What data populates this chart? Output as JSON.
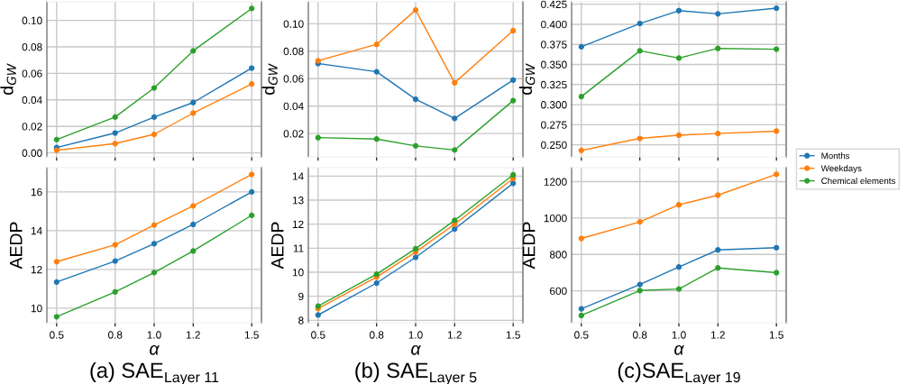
{
  "chart_data": [
    {
      "type": "line",
      "ylabel": "d$_{GW}$",
      "x": [
        0.5,
        0.8,
        1.0,
        1.2,
        1.5
      ],
      "xlim": [
        0.45,
        1.55
      ],
      "xticks": [
        {
          "value": 0.5,
          "label": null
        },
        {
          "value": 0.8,
          "label": null
        },
        {
          "value": 1.0,
          "label": null
        },
        {
          "value": 1.2,
          "label": null
        },
        {
          "value": 1.5,
          "label": null
        }
      ],
      "ylim": [
        -0.003,
        0.114
      ],
      "yticks": [
        {
          "value": 0,
          "label": "0.00"
        },
        {
          "value": 0.02,
          "label": "0.02"
        },
        {
          "value": 0.04,
          "label": "0.04"
        },
        {
          "value": 0.06,
          "label": "0.06"
        },
        {
          "value": 0.08,
          "label": "0.08"
        },
        {
          "value": 0.1,
          "label": "0.10"
        }
      ],
      "tick_labels": "y",
      "grid": true,
      "marker": "circle",
      "line_style": "solid",
      "series": [
        {
          "color": "#1f77b4",
          "values": [
            0.004,
            0.015,
            0.027,
            0.038,
            0.064
          ]
        },
        {
          "color": "#ff7f0e",
          "values": [
            0.002,
            0.007,
            0.014,
            0.03,
            0.052
          ]
        },
        {
          "color": "#2ca02c",
          "values": [
            0.01,
            0.027,
            0.049,
            0.077,
            0.109
          ]
        }
      ]
    },
    {
      "type": "line",
      "ylabel": "d$_{GW}$",
      "x": [
        0.5,
        0.8,
        1.0,
        1.2,
        1.5
      ],
      "xlim": [
        0.45,
        1.55
      ],
      "xticks": [
        {
          "value": 0.5,
          "label": null
        },
        {
          "value": 0.8,
          "label": null
        },
        {
          "value": 1.0,
          "label": null
        },
        {
          "value": 1.2,
          "label": null
        },
        {
          "value": 1.5,
          "label": null
        }
      ],
      "ylim": [
        0.003,
        0.116
      ],
      "yticks": [
        {
          "value": 0.02,
          "label": "0.02"
        },
        {
          "value": 0.04,
          "label": "0.04"
        },
        {
          "value": 0.06,
          "label": "0.06"
        },
        {
          "value": 0.08,
          "label": "0.08"
        },
        {
          "value": 0.1,
          "label": "0.10"
        }
      ],
      "tick_labels": "y",
      "grid": true,
      "marker": "circle",
      "line_style": "solid",
      "series": [
        {
          "color": "#1f77b4",
          "values": [
            0.071,
            0.065,
            0.045,
            0.031,
            0.059
          ]
        },
        {
          "color": "#ff7f0e",
          "values": [
            0.073,
            0.085,
            0.11,
            0.057,
            0.095
          ]
        },
        {
          "color": "#2ca02c",
          "values": [
            0.017,
            0.016,
            0.011,
            0.008,
            0.044
          ]
        }
      ]
    },
    {
      "type": "line",
      "ylabel": "d$_{GW}$",
      "x": [
        0.5,
        0.8,
        1.0,
        1.2,
        1.5
      ],
      "xlim": [
        0.45,
        1.55
      ],
      "xticks": [
        {
          "value": 0.5,
          "label": null
        },
        {
          "value": 0.8,
          "label": null
        },
        {
          "value": 1.0,
          "label": null
        },
        {
          "value": 1.2,
          "label": null
        },
        {
          "value": 1.5,
          "label": null
        }
      ],
      "ylim": [
        0.235,
        0.428
      ],
      "yticks": [
        {
          "value": 0.25,
          "label": "0.250"
        },
        {
          "value": 0.275,
          "label": "0.275"
        },
        {
          "value": 0.3,
          "label": "0.300"
        },
        {
          "value": 0.325,
          "label": "0.325"
        },
        {
          "value": 0.35,
          "label": "0.350"
        },
        {
          "value": 0.375,
          "label": "0.375"
        },
        {
          "value": 0.4,
          "label": "0.400"
        },
        {
          "value": 0.425,
          "label": "0.425"
        }
      ],
      "tick_labels": "y",
      "grid": true,
      "marker": "circle",
      "line_style": "solid",
      "legend": "right",
      "series": [
        {
          "name": "Months",
          "color": "#1f77b4",
          "values": [
            0.372,
            0.401,
            0.417,
            0.413,
            0.42
          ]
        },
        {
          "name": "Weekdays",
          "color": "#ff7f0e",
          "values": [
            0.243,
            0.258,
            0.262,
            0.264,
            0.267
          ]
        },
        {
          "name": "Chemical elements",
          "color": "#2ca02c",
          "values": [
            0.31,
            0.367,
            0.358,
            0.37,
            0.369
          ]
        }
      ]
    },
    {
      "type": "line",
      "ylabel": "AEDP",
      "xlabel": "α",
      "annotations": [
        "(a) SAE$_{Layer 11}$"
      ],
      "x": [
        0.5,
        0.8,
        1.0,
        1.2,
        1.5
      ],
      "xlim": [
        0.45,
        1.55
      ],
      "xticks": [
        {
          "value": 0.5,
          "label": "0.5"
        },
        {
          "value": 0.8,
          "label": "0.8"
        },
        {
          "value": 1.0,
          "label": "1.0"
        },
        {
          "value": 1.2,
          "label": "1.2"
        },
        {
          "value": 1.5,
          "label": "1.5"
        }
      ],
      "ylim": [
        9.25,
        17.25
      ],
      "yticks": [
        10,
        12,
        14,
        16
      ],
      "grid": true,
      "marker": "circle",
      "line_style": "solid",
      "series": [
        {
          "color": "#1f77b4",
          "values": [
            11.35,
            12.43,
            13.33,
            14.32,
            16.0
          ]
        },
        {
          "color": "#ff7f0e",
          "values": [
            12.4,
            13.27,
            14.29,
            15.28,
            16.9
          ]
        },
        {
          "color": "#2ca02c",
          "values": [
            9.56,
            10.84,
            11.84,
            12.95,
            14.79
          ]
        }
      ]
    },
    {
      "type": "line",
      "ylabel": "AEDP",
      "xlabel": "α",
      "annotations": [
        "(b) SAE$_{Layer 5}$"
      ],
      "x": [
        0.5,
        0.8,
        1.0,
        1.2,
        1.5
      ],
      "xlim": [
        0.45,
        1.55
      ],
      "xticks": [
        {
          "value": 0.5,
          "label": "0.5"
        },
        {
          "value": 0.8,
          "label": "0.8"
        },
        {
          "value": 1.0,
          "label": "1.0"
        },
        {
          "value": 1.2,
          "label": "1.2"
        },
        {
          "value": 1.5,
          "label": "1.5"
        }
      ],
      "ylim": [
        7.9,
        14.35
      ],
      "yticks": [
        8,
        9,
        10,
        11,
        12,
        13,
        14
      ],
      "grid": true,
      "marker": "circle",
      "line_style": "solid",
      "series": [
        {
          "color": "#1f77b4",
          "values": [
            8.22,
            9.55,
            10.62,
            11.8,
            13.7
          ]
        },
        {
          "color": "#ff7f0e",
          "values": [
            8.49,
            9.8,
            10.84,
            12.0,
            13.9
          ]
        },
        {
          "color": "#2ca02c",
          "values": [
            8.59,
            9.92,
            10.98,
            12.16,
            14.05
          ]
        }
      ]
    },
    {
      "type": "line",
      "ylabel": "AEDP",
      "xlabel": "α",
      "annotations": [
        "(c)SAE$_{Layer 19}$"
      ],
      "x": [
        0.5,
        0.8,
        1.0,
        1.2,
        1.5
      ],
      "xlim": [
        0.45,
        1.55
      ],
      "xticks": [
        {
          "value": 0.5,
          "label": "0.5"
        },
        {
          "value": 0.8,
          "label": "0.8"
        },
        {
          "value": 1.0,
          "label": "1.0"
        },
        {
          "value": 1.2,
          "label": "1.2"
        },
        {
          "value": 1.5,
          "label": "1.5"
        }
      ],
      "ylim": [
        425,
        1277
      ],
      "yticks": [
        600,
        800,
        1000,
        1200
      ],
      "grid": true,
      "marker": "circle",
      "line_style": "solid",
      "series": [
        {
          "color": "#1f77b4",
          "values": [
            501,
            635,
            731,
            825,
            837
          ]
        },
        {
          "color": "#ff7f0e",
          "values": [
            888,
            979,
            1073,
            1126,
            1241
          ]
        },
        {
          "color": "#2ca02c",
          "values": [
            465,
            602,
            610,
            726,
            700
          ]
        }
      ]
    }
  ]
}
